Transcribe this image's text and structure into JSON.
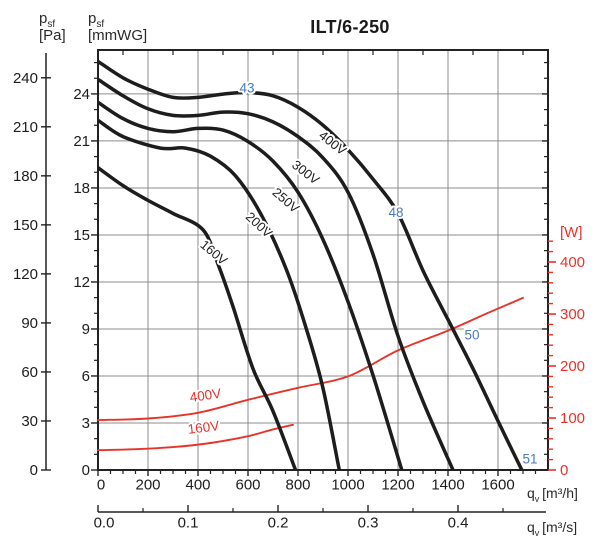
{
  "colors": {
    "curve_black": "#1d1d1d",
    "power_red": "#e8332b",
    "sound_blue": "#4a7abf",
    "grid_gray": "#8c8c8c",
    "axis_dark": "#222222"
  },
  "axis_labels": {
    "pa": {
      "sym": "p",
      "sub": "sf",
      "unit": "[Pa]"
    },
    "mmwg": {
      "sym": "p",
      "sub": "sf",
      "unit": "[mmWG]"
    },
    "w": {
      "unit": "[W]"
    },
    "qh": {
      "sym": "q",
      "sub": "v",
      "unit": "[m³/h]"
    },
    "qs": {
      "sym": "q",
      "sub": "v",
      "unit": "[m³/s]"
    }
  },
  "chart_data": {
    "type": "line",
    "title": "ILT/6-250",
    "x_flow_m3h": {
      "ticks": [
        0,
        200,
        400,
        600,
        800,
        1000,
        1200,
        1400,
        1600
      ],
      "minor_step": 50,
      "max": 1800
    },
    "x_flow_m3s": {
      "ticks": [
        0,
        0.1,
        0.2,
        0.3,
        0.4
      ],
      "tick_labels": [
        "0.0",
        "0.1",
        "0.2",
        "0.3",
        "0.4"
      ],
      "minor_step": 0.05,
      "max": 0.5
    },
    "y_pressure_pa": {
      "ticks": [
        0,
        30,
        60,
        90,
        120,
        150,
        180,
        210,
        240
      ],
      "max": 257
    },
    "y_pressure_mmwg": {
      "ticks": [
        0,
        3,
        6,
        9,
        12,
        15,
        18,
        21,
        24
      ],
      "minor_step": 1,
      "max": 26
    },
    "y_power_w": {
      "ticks": [
        0,
        100,
        200,
        300,
        400
      ],
      "minor_step": 20,
      "max": 440
    },
    "grid": "on",
    "pressure_curves": [
      {
        "label": "160V",
        "points": [
          [
            0,
            185
          ],
          [
            100,
            174
          ],
          [
            200,
            165
          ],
          [
            300,
            157
          ],
          [
            420,
            147
          ],
          [
            480,
            126
          ],
          [
            540,
            100
          ],
          [
            620,
            62
          ],
          [
            700,
            36
          ],
          [
            790,
            0
          ]
        ],
        "label_at": {
          "q": 452,
          "pa": 131,
          "angle": 40
        }
      },
      {
        "label": "200V",
        "points": [
          [
            0,
            214
          ],
          [
            100,
            204
          ],
          [
            250,
            197
          ],
          [
            350,
            197
          ],
          [
            450,
            192
          ],
          [
            550,
            180
          ],
          [
            650,
            157
          ],
          [
            750,
            124
          ],
          [
            830,
            88
          ],
          [
            900,
            50
          ],
          [
            965,
            0
          ]
        ],
        "label_at": {
          "q": 632,
          "pa": 148,
          "angle": 43
        }
      },
      {
        "label": "250V",
        "points": [
          [
            0,
            225
          ],
          [
            100,
            215
          ],
          [
            200,
            209
          ],
          [
            300,
            207
          ],
          [
            400,
            209
          ],
          [
            500,
            208
          ],
          [
            600,
            201
          ],
          [
            700,
            189
          ],
          [
            800,
            170
          ],
          [
            900,
            141
          ],
          [
            1000,
            103
          ],
          [
            1100,
            58
          ],
          [
            1215,
            0
          ]
        ],
        "label_at": {
          "q": 740,
          "pa": 163,
          "angle": 41
        }
      },
      {
        "label": "300V",
        "points": [
          [
            0,
            239
          ],
          [
            100,
            229
          ],
          [
            200,
            221
          ],
          [
            300,
            217
          ],
          [
            400,
            217
          ],
          [
            500,
            219
          ],
          [
            600,
            218
          ],
          [
            700,
            213
          ],
          [
            800,
            204
          ],
          [
            900,
            191
          ],
          [
            1000,
            170
          ],
          [
            1100,
            132
          ],
          [
            1200,
            82
          ],
          [
            1300,
            42
          ],
          [
            1420,
            0
          ]
        ],
        "label_at": {
          "q": 820,
          "pa": 180,
          "angle": 38
        }
      },
      {
        "label": "400V",
        "points": [
          [
            0,
            250
          ],
          [
            100,
            240
          ],
          [
            200,
            233
          ],
          [
            300,
            228
          ],
          [
            400,
            228
          ],
          [
            500,
            230
          ],
          [
            600,
            231
          ],
          [
            700,
            229
          ],
          [
            800,
            222
          ],
          [
            900,
            211
          ],
          [
            1000,
            196
          ],
          [
            1100,
            178
          ],
          [
            1200,
            157
          ],
          [
            1300,
            122
          ],
          [
            1400,
            92
          ],
          [
            1500,
            62
          ],
          [
            1600,
            30
          ],
          [
            1695,
            0
          ]
        ],
        "label_at": {
          "q": 928,
          "pa": 198,
          "angle": 38
        }
      }
    ],
    "power_curves": [
      {
        "label": "160V",
        "points": [
          [
            0,
            38
          ],
          [
            150,
            40
          ],
          [
            300,
            44
          ],
          [
            450,
            52
          ],
          [
            600,
            65
          ],
          [
            700,
            78
          ],
          [
            780,
            87
          ]
        ],
        "label_at": {
          "q": 424,
          "w": 73,
          "angle": -7
        }
      },
      {
        "label": "400V",
        "points": [
          [
            0,
            96
          ],
          [
            200,
            99
          ],
          [
            400,
            110
          ],
          [
            600,
            135
          ],
          [
            800,
            158
          ],
          [
            1000,
            180
          ],
          [
            1200,
            230
          ],
          [
            1400,
            268
          ],
          [
            1550,
            300
          ],
          [
            1700,
            331
          ]
        ],
        "label_at": {
          "q": 432,
          "w": 135,
          "angle": -8
        }
      }
    ],
    "sound_labels": [
      {
        "value": "43",
        "q": 596,
        "pa": 234
      },
      {
        "value": "48",
        "q": 1192,
        "pa": 158
      },
      {
        "value": "50",
        "q": 1496,
        "pa": 83
      },
      {
        "value": "51",
        "q": 1728,
        "pa": 7
      }
    ]
  }
}
